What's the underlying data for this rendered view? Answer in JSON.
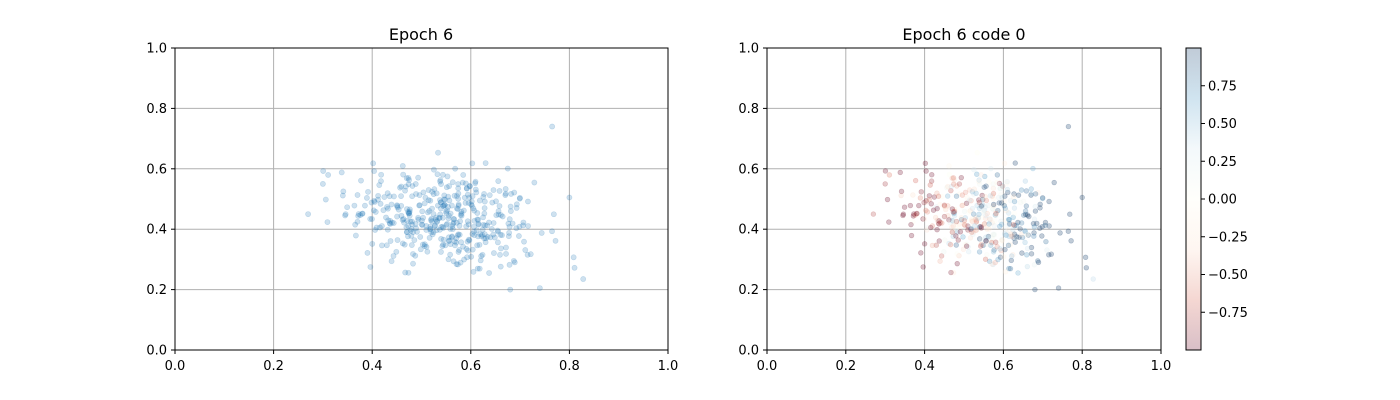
{
  "chart_data": [
    {
      "type": "scatter",
      "title": "Epoch 6",
      "xlim": [
        0.0,
        1.0
      ],
      "ylim": [
        0.0,
        1.0
      ],
      "xticks": [
        "0.0",
        "0.2",
        "0.4",
        "0.6",
        "0.8",
        "1.0"
      ],
      "yticks": [
        "0.0",
        "0.2",
        "0.4",
        "0.6",
        "0.8",
        "1.0"
      ],
      "grid": true,
      "marker_color": "#1f77b4",
      "marker_alpha": 0.22,
      "cluster": {
        "n_points": 420,
        "x_mean": 0.545,
        "x_sd": 0.095,
        "y_mean": 0.435,
        "y_sd": 0.085,
        "x_range": [
          0.27,
          0.83
        ],
        "y_range": [
          0.2,
          0.68
        ]
      },
      "outliers": [
        {
          "x": 0.27,
          "y": 0.45
        },
        {
          "x": 0.765,
          "y": 0.74
        },
        {
          "x": 0.828,
          "y": 0.235
        },
        {
          "x": 0.8,
          "y": 0.505
        },
        {
          "x": 0.68,
          "y": 0.2
        },
        {
          "x": 0.74,
          "y": 0.205
        },
        {
          "x": 0.3,
          "y": 0.55
        }
      ]
    },
    {
      "type": "scatter",
      "title": "Epoch 6 code 0",
      "xlim": [
        0.0,
        1.0
      ],
      "ylim": [
        0.0,
        1.0
      ],
      "xticks": [
        "0.0",
        "0.2",
        "0.4",
        "0.6",
        "0.8",
        "1.0"
      ],
      "yticks": [
        "0.0",
        "0.2",
        "0.4",
        "0.6",
        "0.8",
        "1.0"
      ],
      "grid": true,
      "colormap": "RdBu",
      "marker_alpha": 0.25,
      "color_range": [
        -1.0,
        1.0
      ],
      "colorbar_ticks": [
        "0.75",
        "0.50",
        "0.25",
        "0.00",
        "−0.25",
        "−0.50",
        "−0.75"
      ],
      "colorbar_tick_values": [
        0.75,
        0.5,
        0.25,
        0.0,
        -0.25,
        -0.5,
        -0.75
      ],
      "colorbar_stops": [
        "#67001f",
        "#d6604d",
        "#fddbc7",
        "#fffff0",
        "#d1e5f0",
        "#4393c3",
        "#053061"
      ]
    }
  ]
}
